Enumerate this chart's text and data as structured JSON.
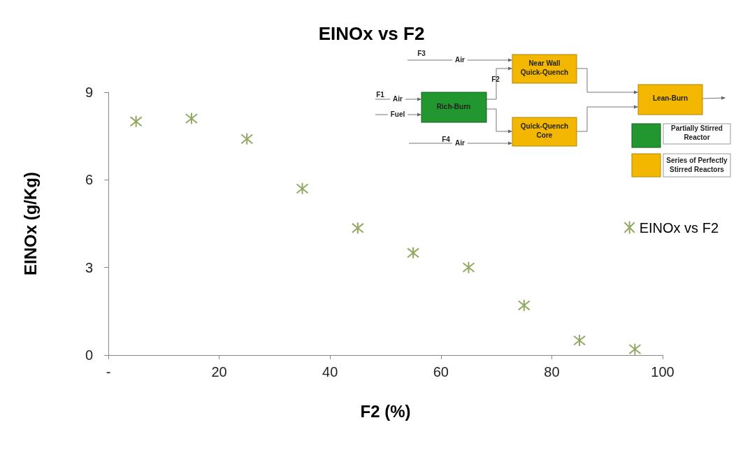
{
  "chart_data": {
    "type": "scatter",
    "title": "EINOx vs F2",
    "xlabel": "F2 (%)",
    "ylabel": "EINOx (g/Kg)",
    "x": [
      5,
      15,
      25,
      35,
      45,
      55,
      65,
      75,
      85,
      95
    ],
    "series": [
      {
        "name": "EINOx vs F2",
        "color": "#77933c",
        "values": [
          8.0,
          8.1,
          7.4,
          5.7,
          4.35,
          3.5,
          3.0,
          1.7,
          0.5,
          0.2
        ]
      }
    ],
    "xlim": [
      0,
      100
    ],
    "xticks": [
      {
        "value": 0,
        "label": "-"
      },
      20,
      40,
      60,
      80,
      100
    ],
    "ylim": [
      0,
      9
    ],
    "yticks": [
      0,
      3,
      6,
      9
    ],
    "grid": false,
    "legend": "right",
    "marker": "cross",
    "annotations": [
      "F3",
      "Air",
      "Near Wall",
      "Quick-Quench",
      "F2",
      "F1",
      "Air",
      "Rich-Burn",
      "Fuel",
      "Quick-Quench",
      "Core",
      "F4",
      "Air",
      "Lean-Burn",
      "Partially Stirred",
      "Reactor",
      "Series of Perfectly",
      "Stirred Reactors"
    ]
  }
}
